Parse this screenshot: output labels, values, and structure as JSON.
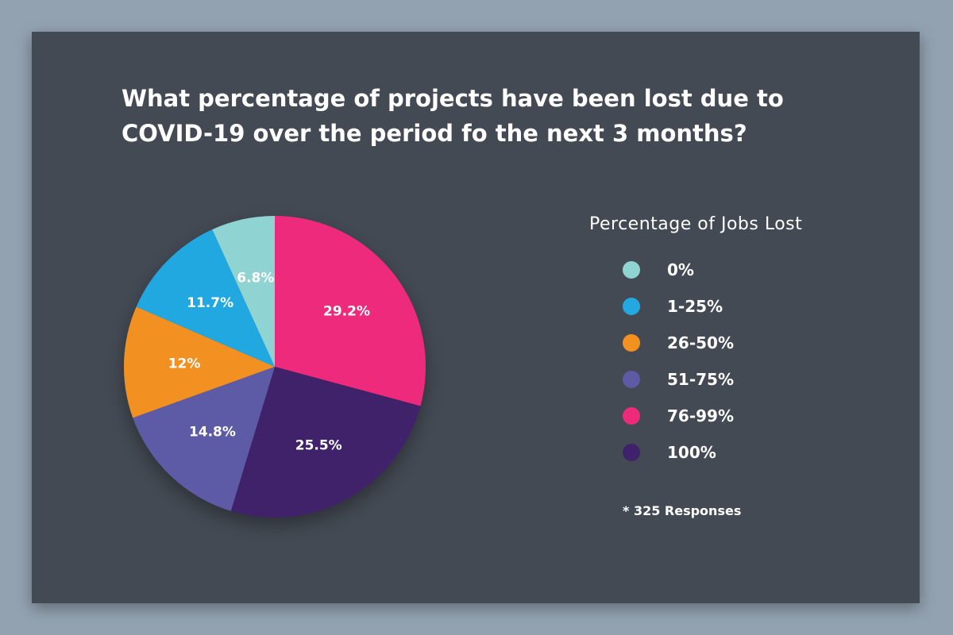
{
  "chart_data": {
    "type": "pie",
    "title": "What percentage of projects have been lost due to COVID-19 over the period fo the next 3 months?",
    "legend_title": "Percentage of Jobs Lost",
    "legend_position": "right",
    "note": "* 325 Responses",
    "slices": [
      {
        "category": "0%",
        "value": 6.8,
        "label": "6.8%",
        "color": "#8fd4d3"
      },
      {
        "category": "1-25%",
        "value": 11.7,
        "label": "11.7%",
        "color": "#24a8e0"
      },
      {
        "category": "26-50%",
        "value": 12,
        "label": "12%",
        "color": "#f29120"
      },
      {
        "category": "51-75%",
        "value": 14.8,
        "label": "14.8%",
        "color": "#5d5aa6"
      },
      {
        "category": "76-99%",
        "value": 29.2,
        "label": "29.2%",
        "color": "#ee2a7b"
      },
      {
        "category": "100%",
        "value": 25.5,
        "label": "25.5%",
        "color": "#40216b"
      }
    ]
  }
}
